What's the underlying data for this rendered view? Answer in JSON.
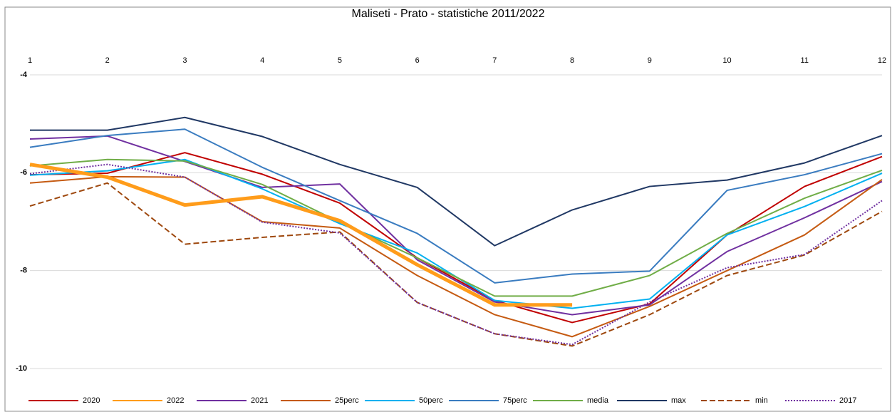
{
  "chart_data": {
    "type": "line",
    "title": "Maliseti  - Prato - statistiche 2011/2022",
    "categories": [
      "1",
      "2",
      "3",
      "4",
      "5",
      "6",
      "7",
      "8",
      "9",
      "10",
      "11",
      "12"
    ],
    "ylim": [
      -10,
      -4
    ],
    "yticks": [
      -10,
      -8,
      -6,
      -4
    ],
    "grid": true,
    "legend": "bottom",
    "series": [
      {
        "name": "2020",
        "color": "#c00000",
        "width": 2,
        "dash": "solid",
        "values": [
          -6.04,
          -6.01,
          -5.59,
          -6.03,
          -6.62,
          -7.74,
          -8.61,
          -9.06,
          -8.68,
          -7.27,
          -6.28,
          -5.67
        ]
      },
      {
        "name": "2022",
        "color": "#ff9c1a",
        "width": 5,
        "dash": "solid",
        "values": [
          -5.83,
          -6.09,
          -6.66,
          -6.49,
          -6.98,
          -7.88,
          -8.7,
          -8.7,
          null,
          null,
          null,
          null
        ]
      },
      {
        "name": "2021",
        "color": "#7030a0",
        "width": 2,
        "dash": "solid",
        "values": [
          -5.31,
          -5.25,
          -5.77,
          -6.3,
          -6.23,
          -7.78,
          -8.64,
          -8.9,
          -8.7,
          -7.61,
          -6.92,
          -6.18
        ]
      },
      {
        "name": "25perc",
        "color": "#c55a11",
        "width": 2,
        "dash": "solid",
        "values": [
          -6.21,
          -6.08,
          -6.09,
          -7.0,
          -7.13,
          -8.1,
          -8.9,
          -9.35,
          -8.73,
          -8.0,
          -7.27,
          -6.14
        ]
      },
      {
        "name": "50perc",
        "color": "#00b0f0",
        "width": 2,
        "dash": "solid",
        "values": [
          -6.05,
          -5.96,
          -5.73,
          -6.33,
          -7.04,
          -7.64,
          -8.61,
          -8.77,
          -8.58,
          -7.27,
          -6.69,
          -6.01
        ]
      },
      {
        "name": "75perc",
        "color": "#3a7cc0",
        "width": 2,
        "dash": "solid",
        "values": [
          -5.48,
          -5.24,
          -5.11,
          -5.89,
          -6.57,
          -7.24,
          -8.25,
          -8.07,
          -8.01,
          -6.36,
          -6.04,
          -5.61
        ]
      },
      {
        "name": "media",
        "color": "#70ad47",
        "width": 2,
        "dash": "solid",
        "values": [
          -5.86,
          -5.73,
          -5.76,
          -6.24,
          -7.01,
          -7.74,
          -8.52,
          -8.52,
          -8.1,
          -7.24,
          -6.52,
          -5.95
        ]
      },
      {
        "name": "max",
        "color": "#203864",
        "width": 2,
        "dash": "solid",
        "values": [
          -5.13,
          -5.13,
          -4.87,
          -5.26,
          -5.83,
          -6.3,
          -7.49,
          -6.76,
          -6.28,
          -6.15,
          -5.8,
          -5.24
        ]
      },
      {
        "name": "min",
        "color": "#9e480e",
        "width": 2,
        "dash": "dashed",
        "values": [
          -6.68,
          -6.21,
          -7.46,
          -7.32,
          -7.21,
          -8.65,
          -9.29,
          -9.54,
          -8.9,
          -8.1,
          -7.68,
          -6.79
        ]
      },
      {
        "name": "2017",
        "color": "#7030a0",
        "width": 2,
        "dash": "dotted",
        "values": [
          -6.02,
          -5.83,
          -6.09,
          -7.01,
          -7.23,
          -8.65,
          -9.29,
          -9.51,
          -8.64,
          -7.94,
          -7.67,
          -6.57
        ]
      }
    ]
  }
}
